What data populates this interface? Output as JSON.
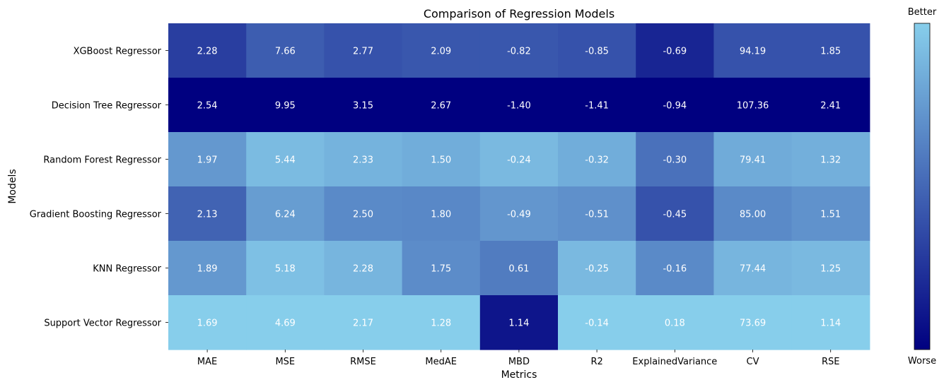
{
  "chart_data": {
    "type": "heatmap",
    "title": "Comparison of Regression Models",
    "xlabel": "Metrics",
    "ylabel": "Models",
    "columns": [
      "MAE",
      "MSE",
      "RMSE",
      "MedAE",
      "MBD",
      "R2",
      "ExplainedVariance",
      "CV",
      "RSE"
    ],
    "rows": [
      "XGBoost Regressor",
      "Decision Tree Regressor",
      "Random Forest Regressor",
      "Gradient Boosting Regressor",
      "KNN Regressor",
      "Support Vector Regressor"
    ],
    "values": [
      [
        "2.28",
        "7.66",
        "2.77",
        "2.09",
        "-0.82",
        "-0.85",
        "-0.69",
        "94.19",
        "1.85"
      ],
      [
        "2.54",
        "9.95",
        "3.15",
        "2.67",
        "-1.40",
        "-1.41",
        "-0.94",
        "107.36",
        "2.41"
      ],
      [
        "1.97",
        "5.44",
        "2.33",
        "1.50",
        "-0.24",
        "-0.32",
        "-0.30",
        "79.41",
        "1.32"
      ],
      [
        "2.13",
        "6.24",
        "2.50",
        "1.80",
        "-0.49",
        "-0.51",
        "-0.45",
        "85.00",
        "1.51"
      ],
      [
        "1.89",
        "5.18",
        "2.28",
        "1.75",
        "0.61",
        "-0.25",
        "-0.16",
        "77.44",
        "1.25"
      ],
      [
        "1.69",
        "4.69",
        "2.17",
        "1.28",
        "1.14",
        "-0.14",
        "0.18",
        "73.69",
        "1.14"
      ]
    ],
    "normalized_goodness": [
      [
        0.3,
        0.45,
        0.4,
        0.42,
        0.42,
        0.4,
        0.18,
        0.4,
        0.4
      ],
      [
        0.0,
        0.0,
        0.0,
        0.0,
        0.0,
        0.0,
        0.0,
        0.0,
        0.0
      ],
      [
        0.74,
        0.91,
        0.87,
        0.84,
        0.9,
        0.84,
        0.55,
        0.83,
        0.85
      ],
      [
        0.48,
        0.76,
        0.67,
        0.66,
        0.73,
        0.7,
        0.4,
        0.67,
        0.71
      ],
      [
        0.74,
        0.93,
        0.88,
        0.68,
        0.6,
        0.9,
        0.67,
        0.88,
        0.9
      ],
      [
        1.0,
        1.0,
        1.0,
        1.0,
        0.1,
        1.0,
        1.0,
        1.0,
        1.0
      ]
    ],
    "colorbar": {
      "top_label": "Better",
      "bottom_label": "Worse",
      "colors": [
        "#000080",
        "#87CEEB"
      ]
    },
    "grid": false,
    "legend": "none"
  }
}
